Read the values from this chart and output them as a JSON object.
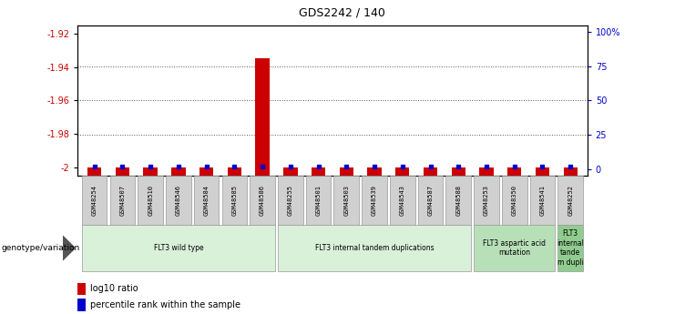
{
  "title": "GDS2242 / 140",
  "samples": [
    "GSM48254",
    "GSM48507",
    "GSM48510",
    "GSM48546",
    "GSM48584",
    "GSM48585",
    "GSM48586",
    "GSM48255",
    "GSM48501",
    "GSM48503",
    "GSM48539",
    "GSM48543",
    "GSM48587",
    "GSM48588",
    "GSM48253",
    "GSM48350",
    "GSM48541",
    "GSM48252"
  ],
  "log10_ratios": [
    -2.0,
    -2.0,
    -2.0,
    -2.0,
    -2.0,
    -2.0,
    -1.935,
    -2.0,
    -2.0,
    -2.0,
    -2.0,
    -2.0,
    -2.0,
    -2.0,
    -2.0,
    -2.0,
    -2.0,
    -2.0
  ],
  "percentile_ranks": [
    2,
    2,
    2,
    2,
    2,
    2,
    2,
    2,
    2,
    2,
    2,
    2,
    2,
    2,
    2,
    2,
    2,
    2
  ],
  "ylim_left": [
    -2.005,
    -1.915
  ],
  "ylim_right": [
    -5,
    105
  ],
  "left_ticks": [
    -2.0,
    -1.98,
    -1.96,
    -1.94,
    -1.92
  ],
  "left_tick_labels": [
    "-2",
    "-1.98",
    "-1.96",
    "-1.94",
    "-1.92"
  ],
  "right_ticks": [
    0,
    25,
    50,
    75,
    100
  ],
  "right_tick_labels": [
    "0",
    "25",
    "50",
    "75",
    "100%"
  ],
  "bar_color": "#cc0000",
  "dot_color": "#0000cc",
  "bar_width": 0.5,
  "dotted_line_color": "#555555",
  "groups": [
    {
      "label": "FLT3 wild type",
      "start": 0,
      "end": 7,
      "color": "#d9f0d9"
    },
    {
      "label": "FLT3 internal tandem duplications",
      "start": 7,
      "end": 14,
      "color": "#d9f0d9"
    },
    {
      "label": "FLT3 aspartic acid\nmutation",
      "start": 14,
      "end": 17,
      "color": "#b8e0b8"
    },
    {
      "label": "FLT3\ninternal\ntande\nm dupli",
      "start": 17,
      "end": 18,
      "color": "#90cc90"
    }
  ],
  "legend_bar_label": "log10 ratio",
  "legend_dot_label": "percentile rank within the sample",
  "xlabel_left": "genotype/variation",
  "background_color": "#ffffff",
  "ax_background": "#ffffff",
  "title_color": "#000000",
  "left_tick_color": "#cc0000",
  "right_tick_color": "#0000cc",
  "sample_box_color": "#d0d0d0",
  "sample_box_edge": "#999999",
  "grid_color": "#555555"
}
